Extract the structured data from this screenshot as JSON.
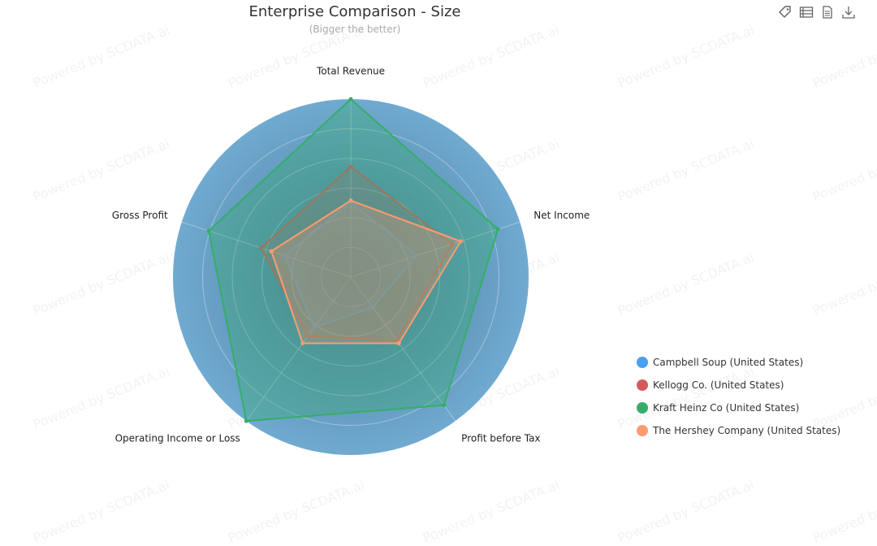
{
  "watermark": "Powered by SCDATA.ai",
  "toolbox": {
    "icons": [
      "tag-icon",
      "data-view-icon",
      "document-icon",
      "download-icon"
    ]
  },
  "chart_data": {
    "type": "radar",
    "title": "Enterprise Comparison - Size",
    "subtitle": "(Bigger the better)",
    "indicators": [
      "Total Revenue",
      "Net Income",
      "Profit before Tax",
      "Operating Income or Loss",
      "Gross Profit"
    ],
    "scale_max": 1.0,
    "split_number": 6,
    "legend_position": "bottom-right",
    "series": [
      {
        "name": "Campbell Soup (United States)",
        "color": "#4a9ff0",
        "values": [
          0.42,
          0.39,
          0.21,
          0.35,
          0.39
        ]
      },
      {
        "name": "Kellogg Co. (United States)",
        "color": "#d35a5a",
        "values": [
          0.62,
          0.6,
          0.44,
          0.41,
          0.53
        ]
      },
      {
        "name": "Kraft Heinz Co (United States)",
        "color": "#35ad6a",
        "values": [
          1.0,
          0.87,
          0.89,
          1.0,
          0.84
        ]
      },
      {
        "name": "The Hershey Company (United States)",
        "color": "#ff9b6f",
        "values": [
          0.43,
          0.65,
          0.46,
          0.46,
          0.47
        ]
      }
    ]
  }
}
